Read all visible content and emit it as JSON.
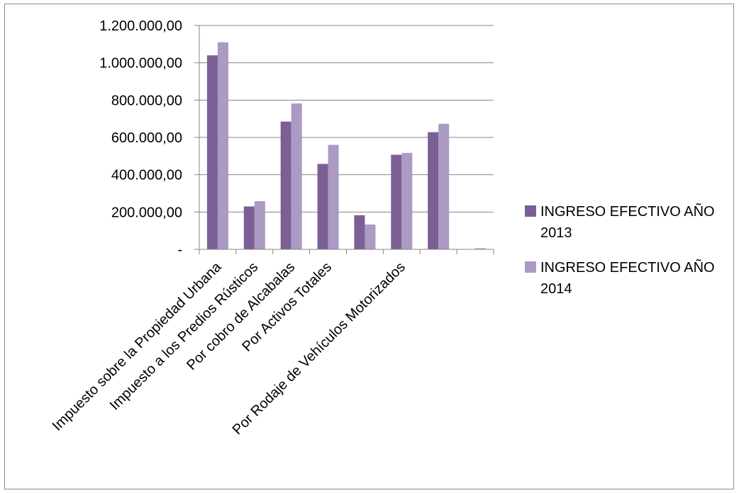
{
  "chart_data": {
    "type": "bar",
    "categories": [
      "Impuesto sobre la Propiedad Urbana",
      "Impuesto a los Predios Rústicos",
      "Por cobro de Alcabalas",
      "Por Activos Totales",
      "",
      "Por Rodaje de Vehículos Motorizados",
      "",
      ""
    ],
    "series": [
      {
        "name_lines": [
          "INGRESO EFECTIVO AÑO",
          "2013"
        ],
        "color": "#7b5f95",
        "values": [
          1040000,
          230000,
          685000,
          458000,
          183000,
          507000,
          628000,
          0
        ]
      },
      {
        "name_lines": [
          "INGRESO EFECTIVO AÑO",
          "2014"
        ],
        "color": "#aa9ac4",
        "values": [
          1110000,
          258000,
          782000,
          560000,
          133000,
          517000,
          673000,
          5000
        ]
      }
    ],
    "yticks": [
      {
        "value": 0,
        "label": "-"
      },
      {
        "value": 200000,
        "label": "200.000,00"
      },
      {
        "value": 400000,
        "label": "400.000,00"
      },
      {
        "value": 600000,
        "label": "600.000,00"
      },
      {
        "value": 800000,
        "label": "800.000,00"
      },
      {
        "value": 1000000,
        "label": "1.000.000,00"
      },
      {
        "value": 1200000,
        "label": "1.200.000,00"
      }
    ],
    "ylim": [
      0,
      1200000
    ],
    "grid": true,
    "legend_position": "right",
    "colors": {
      "grid": "#868686",
      "axis": "#868686"
    }
  }
}
